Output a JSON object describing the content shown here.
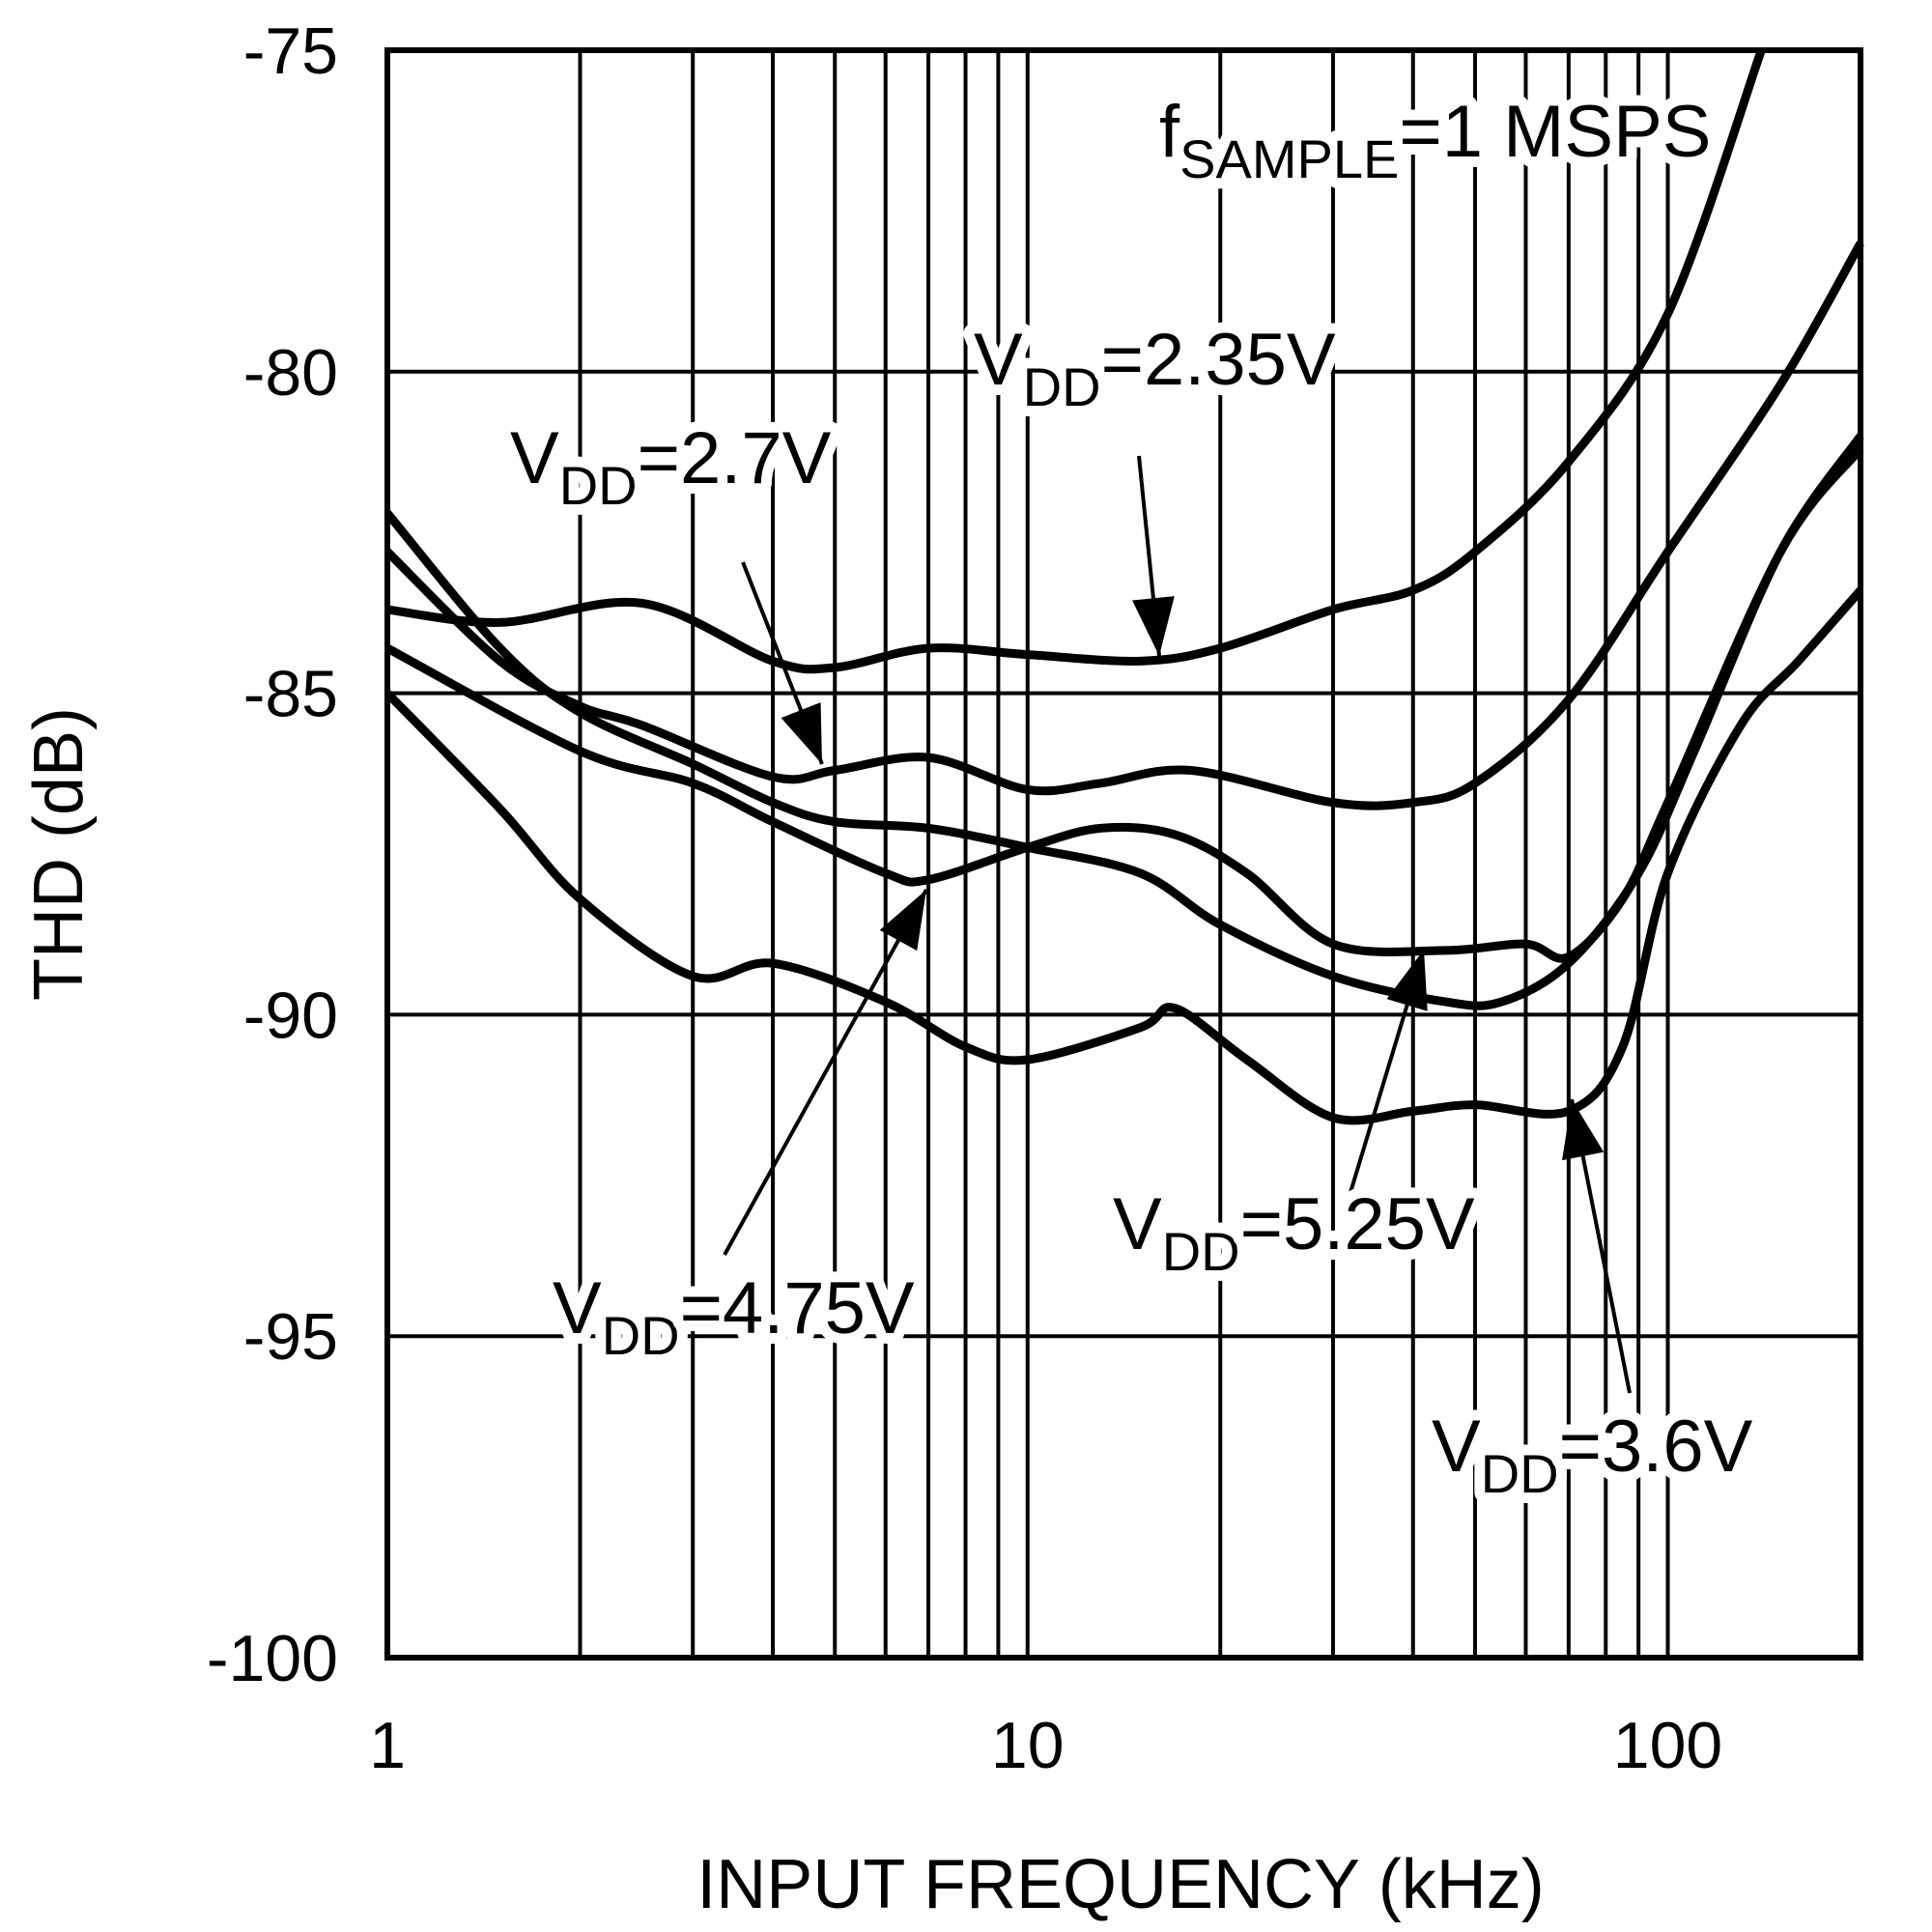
{
  "chart_data": {
    "type": "line",
    "title": "",
    "xlabel": "INPUT FREQUENCY (kHz)",
    "ylabel": "THD (dB)",
    "xscale": "log",
    "xlim": [
      1,
      200
    ],
    "ylim": [
      -100,
      -75
    ],
    "grid": true,
    "xticks": [
      {
        "v": 1,
        "label": "1"
      },
      {
        "v": 10,
        "label": "10"
      },
      {
        "v": 100,
        "label": "100"
      }
    ],
    "yticks": [
      {
        "v": -75,
        "label": "-75"
      },
      {
        "v": -80,
        "label": "-80"
      },
      {
        "v": -85,
        "label": "-85"
      },
      {
        "v": -90,
        "label": "-90"
      },
      {
        "v": -95,
        "label": "-95"
      },
      {
        "v": -100,
        "label": "-100"
      }
    ],
    "condition": {
      "main": "f",
      "sub": "SAMPLE",
      "rest": "=1 MSPS"
    },
    "series": [
      {
        "name": "VDD=2.35V",
        "x": [
          1,
          1.5,
          2.5,
          4,
          5,
          7,
          10,
          15,
          20,
          30,
          40,
          50,
          70,
          100,
          140
        ],
        "y": [
          -83.7,
          -83.9,
          -83.6,
          -84.5,
          -84.6,
          -84.3,
          -84.4,
          -84.5,
          -84.3,
          -83.7,
          -83.4,
          -82.8,
          -81.4,
          -79.1,
          -75.0
        ]
      },
      {
        "name": "VDD=2.7V",
        "x": [
          1,
          1.5,
          2,
          2.5,
          4,
          5,
          7,
          10,
          13,
          18,
          30,
          40,
          50,
          70,
          100,
          150,
          200
        ],
        "y": [
          -82.8,
          -84.5,
          -85.2,
          -85.5,
          -86.3,
          -86.2,
          -86.0,
          -86.5,
          -86.4,
          -86.2,
          -86.7,
          -86.7,
          -86.4,
          -85.1,
          -82.8,
          -80.2,
          -78.0
        ]
      },
      {
        "name": "VDD=5.25V",
        "x": [
          1,
          1.5,
          2,
          3,
          4,
          5,
          7,
          10,
          15,
          20,
          30,
          45,
          55,
          70,
          90,
          110,
          150,
          200
        ],
        "y": [
          -82.2,
          -84.3,
          -85.3,
          -86.1,
          -86.7,
          -87.0,
          -87.1,
          -87.4,
          -87.8,
          -88.6,
          -89.4,
          -89.8,
          -89.8,
          -89.2,
          -87.8,
          -85.9,
          -82.8,
          -81.0
        ]
      },
      {
        "name": "VDD=4.75V",
        "x": [
          1,
          2,
          3,
          4,
          6,
          7,
          10,
          13,
          17,
          22,
          30,
          45,
          60,
          70,
          85,
          100,
          150,
          200
        ],
        "y": [
          -84.3,
          -85.9,
          -86.4,
          -87.0,
          -87.8,
          -87.9,
          -87.4,
          -87.1,
          -87.2,
          -87.8,
          -88.9,
          -89.0,
          -88.9,
          -89.1,
          -88.2,
          -86.7,
          -82.8,
          -81.2
        ]
      },
      {
        "name": "VDD=3.6V",
        "x": [
          1,
          1.5,
          2,
          3,
          4,
          6,
          8,
          10,
          15,
          17,
          22,
          30,
          40,
          50,
          70,
          85,
          100,
          130,
          160,
          200
        ],
        "y": [
          -85.0,
          -86.8,
          -88.2,
          -89.4,
          -89.2,
          -89.8,
          -90.5,
          -90.7,
          -90.2,
          -89.9,
          -90.7,
          -91.6,
          -91.5,
          -91.4,
          -91.5,
          -90.5,
          -87.8,
          -85.5,
          -84.5,
          -83.4
        ]
      }
    ],
    "annotations": [
      {
        "main": "V",
        "sub": "DD",
        "rest": "=2.35V"
      },
      {
        "main": "V",
        "sub": "DD",
        "rest": "=2.7V"
      },
      {
        "main": "V",
        "sub": "DD",
        "rest": "=4.75V"
      },
      {
        "main": "V",
        "sub": "DD",
        "rest": "=5.25V"
      },
      {
        "main": "V",
        "sub": "DD",
        "rest": "=3.6V"
      }
    ]
  }
}
